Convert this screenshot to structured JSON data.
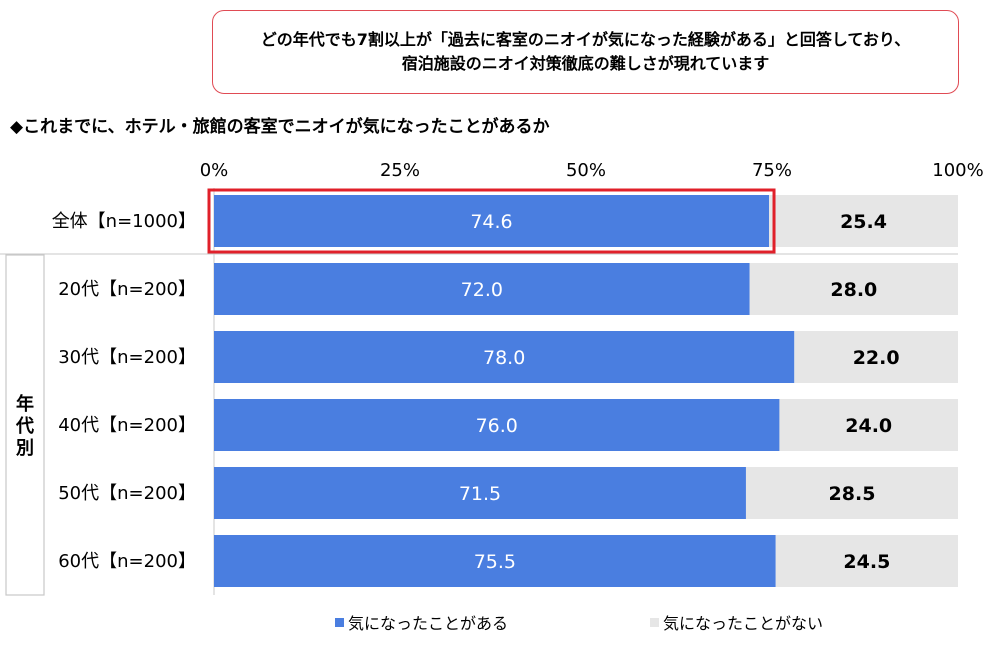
{
  "callout": {
    "line1": "どの年代でも7割以上が「過去に客室のニオイが気になった経験がある」と回答しており、",
    "line2": "宿泊施設のニオイ対策徹底の難しさが現れています"
  },
  "subtitle": "◆これまでに、ホテル・旅館の客室でニオイが気になったことがあるか",
  "group_label": "年代別",
  "colors": {
    "series1": "#4a7ee0",
    "series2": "#e6e6e6",
    "highlight": "#e0202a",
    "grid": "#c8c8c8"
  },
  "chart_data": {
    "type": "bar",
    "orientation": "horizontal",
    "stacked": true,
    "categories": [
      "全体【n=1000】",
      "20代【n=200】",
      "30代【n=200】",
      "40代【n=200】",
      "50代【n=200】",
      "60代【n=200】"
    ],
    "series": [
      {
        "name": "気になったことがある",
        "values": [
          74.6,
          72.0,
          78.0,
          76.0,
          71.5,
          75.5
        ]
      },
      {
        "name": "気になったことがない",
        "values": [
          25.4,
          28.0,
          22.0,
          24.0,
          28.5,
          24.5
        ]
      }
    ],
    "xticks": [
      "0%",
      "25%",
      "50%",
      "75%",
      "100%"
    ],
    "xlim": [
      0,
      100
    ],
    "legend": "bottom",
    "highlighted_category": "全体【n=1000】"
  }
}
